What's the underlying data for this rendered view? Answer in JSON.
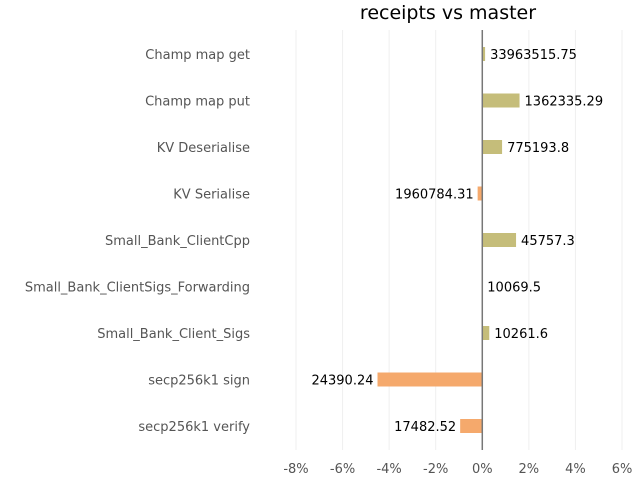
{
  "chart_data": {
    "type": "bar",
    "orientation": "horizontal",
    "title": "receipts vs master",
    "xlabel": "",
    "ylabel": "",
    "xlim": [
      -8.0,
      6.0
    ],
    "x_ticks": [
      -8,
      -6,
      -4,
      -2,
      0,
      2,
      4,
      6
    ],
    "x_tick_labels": [
      "-8%",
      "-6%",
      "-4%",
      "-2%",
      "0%",
      "2%",
      "4%",
      "6%"
    ],
    "grid": "vertical",
    "colors": {
      "positive": "#c5bd7a",
      "negative": "#f5a96c",
      "zero_line": "#777777"
    },
    "categories": [
      "Champ map get",
      "Champ map put",
      "KV Deserialise",
      "KV Serialise",
      "Small_Bank_ClientCpp",
      "Small_Bank_ClientSigs_Forwarding",
      "Small_Bank_Client_Sigs",
      "secp256k1 sign",
      "secp256k1 verify"
    ],
    "values": [
      0.12,
      1.6,
      0.85,
      -0.2,
      1.45,
      0.0,
      0.3,
      -4.5,
      -0.95
    ],
    "labels": [
      "33963515.75",
      "1362335.29",
      "775193.8",
      "1960784.31",
      "45757.3",
      "10069.5",
      "10261.6",
      "24390.24",
      "17482.52"
    ]
  }
}
